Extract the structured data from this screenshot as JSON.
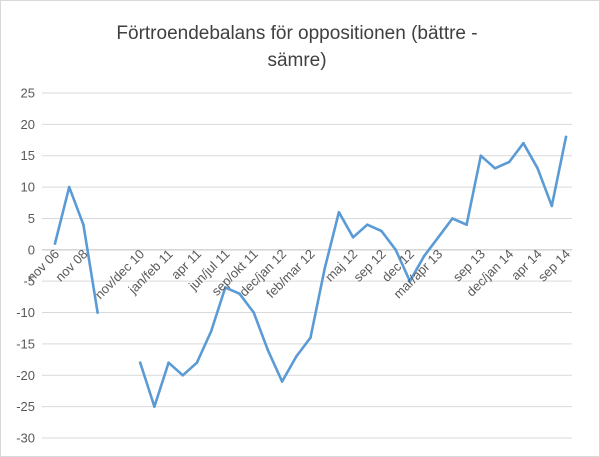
{
  "chart_data": {
    "type": "line",
    "title_lines": [
      "Förtroendebalans för oppositionen (bättre -",
      "sämre)"
    ],
    "xlabel": "",
    "ylabel": "",
    "ylim": [
      -30,
      25
    ],
    "yticks": [
      25,
      20,
      15,
      10,
      5,
      0,
      -5,
      -10,
      -15,
      -20,
      -25,
      -30
    ],
    "grid": true,
    "legend": "none",
    "line_color": "#5b9bd5",
    "x_labels": [
      "nov 06",
      "nov 08",
      "nov/dec 10",
      "jan/feb 11",
      "apr 11",
      "jun/jul 11",
      "sep/okt 11",
      "dec/jan 12",
      "feb/mar 12",
      "maj 12",
      "sep 12",
      "dec 12",
      "mar/apr 13",
      "sep 13",
      "dec/jan 14",
      "apr 14",
      "sep 14"
    ],
    "x_label_positions": [
      0,
      2,
      6,
      8,
      10,
      12,
      14,
      16,
      18,
      21,
      23,
      25,
      27,
      30,
      32,
      34,
      36
    ],
    "series": [
      {
        "values": [
          1,
          10,
          4,
          -10,
          null,
          null,
          -18,
          -25,
          -18,
          -20,
          -18,
          -13,
          -6,
          -7,
          -10,
          -16,
          -21,
          -17,
          -14,
          -3,
          6,
          2,
          4,
          3,
          0,
          -5,
          -1,
          2,
          5,
          4,
          15,
          13,
          14,
          17,
          13,
          7,
          18
        ]
      }
    ]
  }
}
